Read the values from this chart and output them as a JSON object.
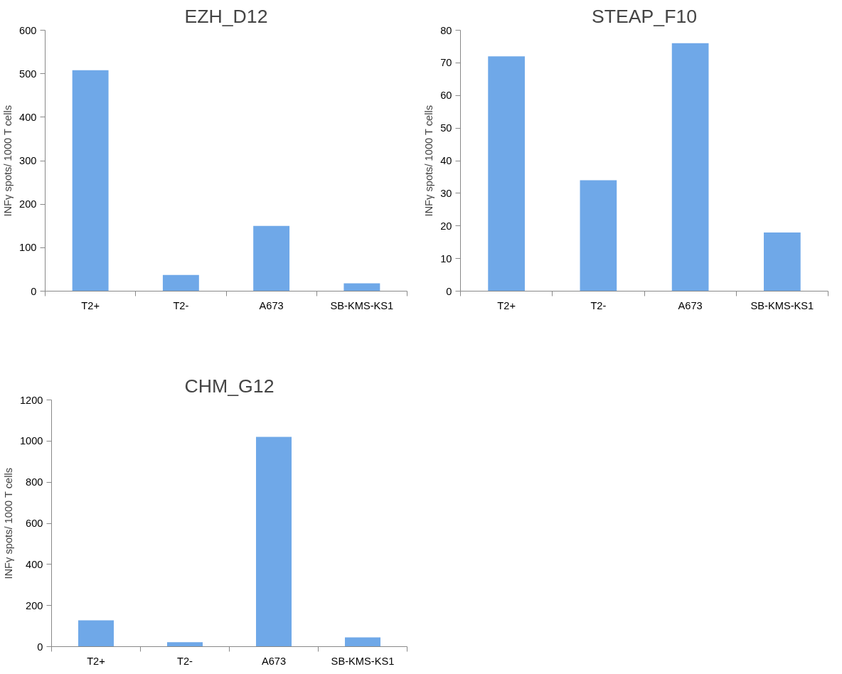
{
  "chart_data": [
    {
      "type": "bar",
      "title": "EZH_D12",
      "ylabel": "INFγ spots/ 1000 T cells",
      "categories": [
        "T2+",
        "T2-",
        "A673",
        "SB-KMS-KS1"
      ],
      "values": [
        508,
        37,
        150,
        18
      ],
      "color": "#6fa8e8",
      "ylim": [
        0,
        600
      ],
      "yticks": [
        0,
        100,
        200,
        300,
        400,
        500,
        600
      ],
      "grid": false
    },
    {
      "type": "bar",
      "title": "STEAP_F10",
      "ylabel": "INFγ spots/ 1000 T cells",
      "categories": [
        "T2+",
        "T2-",
        "A673",
        "SB-KMS-KS1"
      ],
      "values": [
        72,
        34,
        76,
        18
      ],
      "color": "#6fa8e8",
      "ylim": [
        0,
        80
      ],
      "yticks": [
        0,
        10,
        20,
        30,
        40,
        50,
        60,
        70,
        80
      ],
      "grid": false
    },
    {
      "type": "bar",
      "title": "CHM_G12",
      "ylabel": "INFγ spots/ 1000 T cells",
      "categories": [
        "T2+",
        "T2-",
        "A673",
        "SB-KMS-KS1"
      ],
      "values": [
        128,
        22,
        1020,
        45
      ],
      "color": "#6fa8e8",
      "ylim": [
        0,
        1200
      ],
      "yticks": [
        0,
        200,
        400,
        600,
        800,
        1000,
        1200
      ],
      "grid": false
    }
  ]
}
